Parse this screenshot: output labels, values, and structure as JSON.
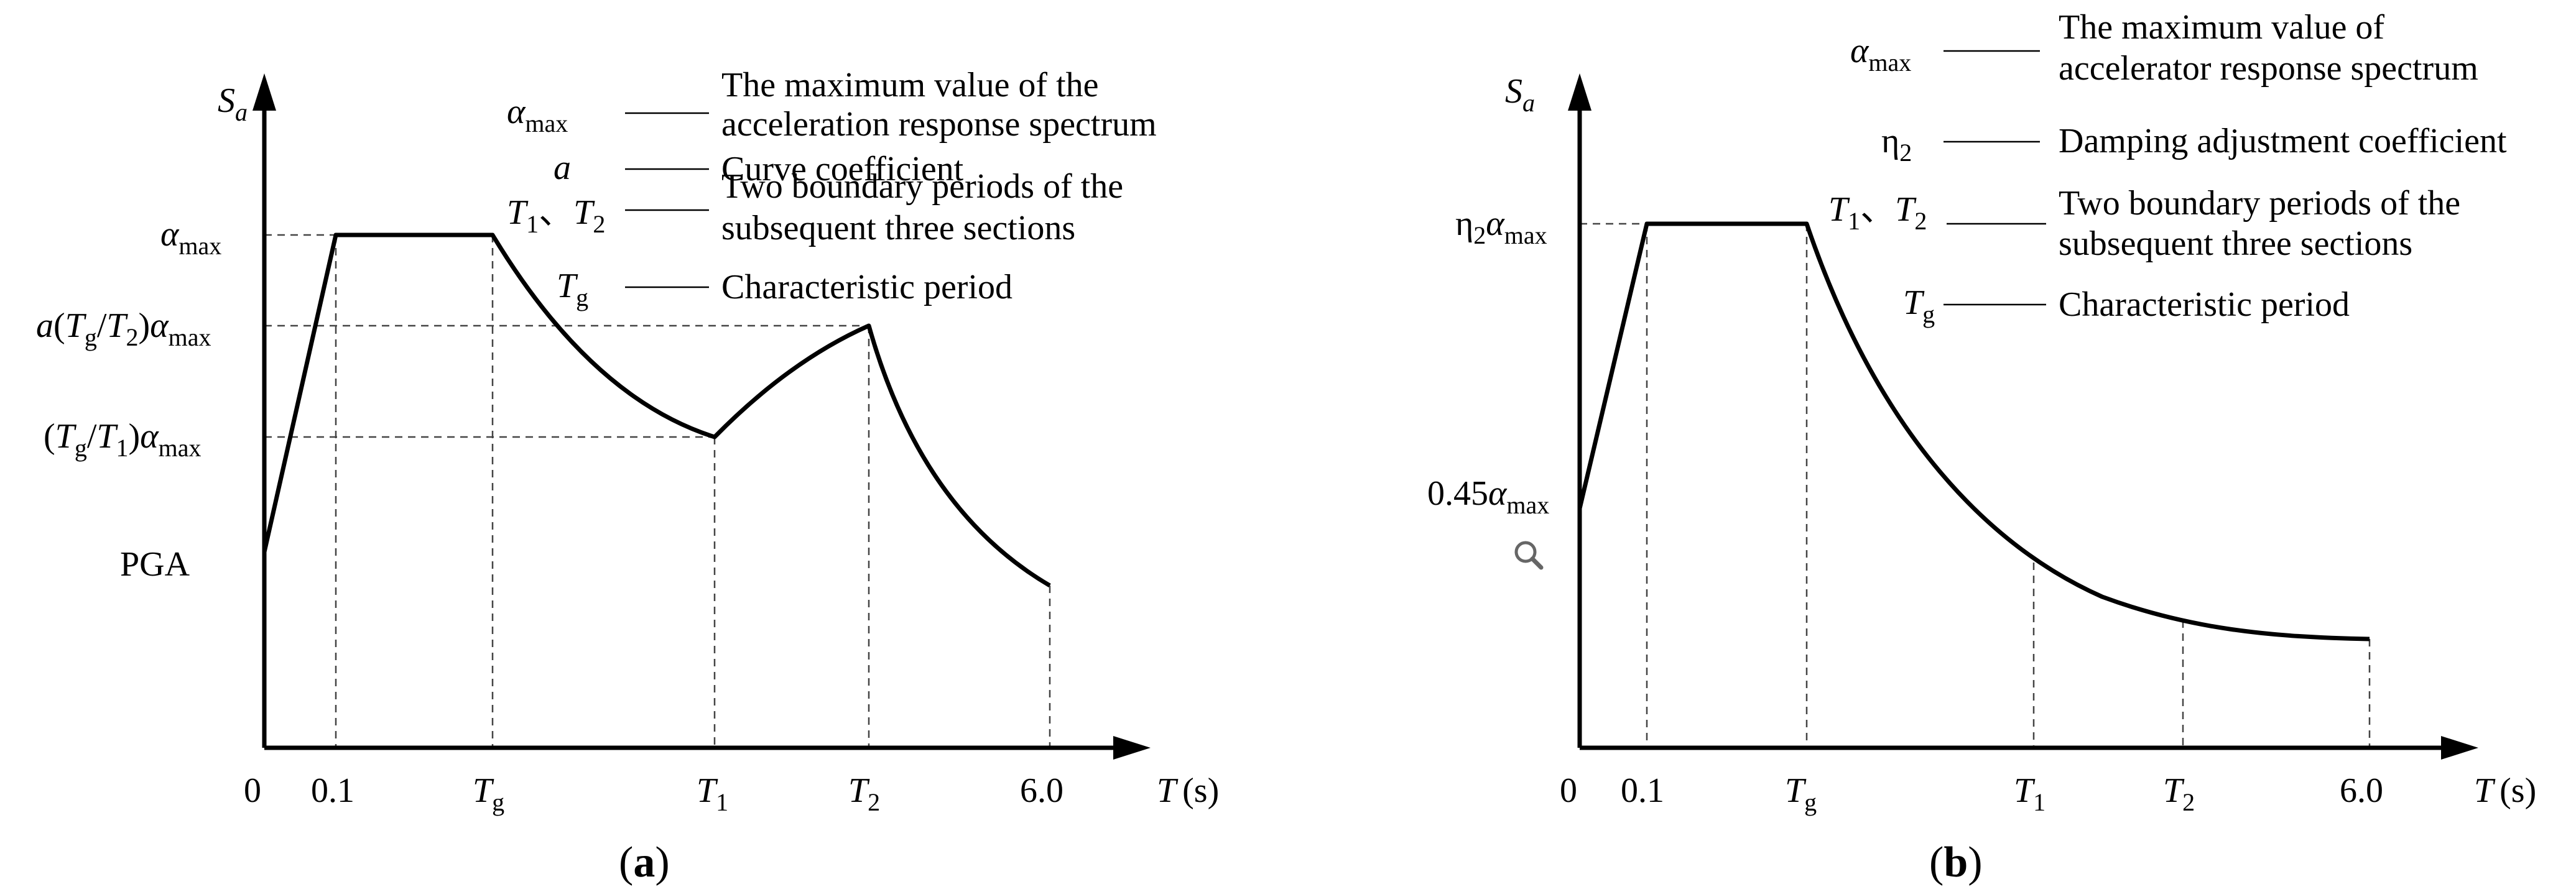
{
  "chart_data": [
    {
      "panel": "a",
      "type": "line",
      "caption": {
        "open": "(",
        "letter": "a",
        "close": ")"
      },
      "xlabel": {
        "var": "T",
        "unit": "(s)"
      },
      "ylabel": {
        "var": "S",
        "subscript": "a"
      },
      "x_ticks": {
        "zero": "0",
        "p01": "0.1",
        "tg": {
          "var": "T",
          "sub": "g"
        },
        "t1": {
          "var": "T",
          "sub": "1"
        },
        "t2": {
          "var": "T",
          "sub": "2"
        },
        "end": "6.0"
      },
      "y_ticks": {
        "pga": "PGA",
        "amax": {
          "sym": "α",
          "sub": "max"
        },
        "tg_t1": {
          "open": "(",
          "tv": "T",
          "ts": "g",
          "slash": "/",
          "tv2": "T",
          "ts2": "1",
          "close": ")",
          "sym": "α",
          "sub": "max"
        },
        "a_tg_t2": {
          "coef": "a",
          "open": "(",
          "tv": "T",
          "ts": "g",
          "slash": "/",
          "tv2": "T",
          "ts2": "2",
          "close": ")",
          "sym": "α",
          "sub": "max"
        }
      },
      "x": [
        0,
        0.1,
        "Tg",
        "T1",
        "T2",
        6.0
      ],
      "y": [
        "PGA",
        "αmax",
        "αmax",
        "(Tg/T1)αmax",
        "a(Tg/T2)αmax",
        "end"
      ],
      "legend": {
        "amax": {
          "sym": "α",
          "sub": "max",
          "desc1": "The maximum value of the",
          "desc2": "acceleration response spectrum"
        },
        "a": {
          "sym": "a",
          "desc": "Curve coefficient"
        },
        "t12": {
          "t1": "T",
          "s1": "1",
          "sep": "、",
          "t2": "T",
          "s2": "2",
          "desc1": "Two boundary periods of the",
          "desc2": "subsequent three sections"
        },
        "tg": {
          "var": "T",
          "sub": "g",
          "desc": "Characteristic period"
        }
      }
    },
    {
      "panel": "b",
      "type": "line",
      "caption": {
        "open": "(",
        "letter": "b",
        "close": ")"
      },
      "xlabel": {
        "var": "T",
        "unit": "(s)"
      },
      "ylabel": {
        "var": "S",
        "subscript": "a"
      },
      "x_ticks": {
        "zero": "0",
        "p01": "0.1",
        "tg": {
          "var": "T",
          "sub": "g"
        },
        "t1": {
          "var": "T",
          "sub": "1"
        },
        "t2": {
          "var": "T",
          "sub": "2"
        },
        "end": "6.0"
      },
      "y_ticks": {
        "eta_amax": {
          "eta": "η",
          "esub": "2",
          "sym": "α",
          "sub": "max"
        },
        "low": {
          "coef": "0.45",
          "sym": "α",
          "sub": "max"
        }
      },
      "x": [
        0,
        0.1,
        "Tg",
        "T1",
        "T2",
        6.0
      ],
      "y": [
        "0.45αmax",
        "η2αmax",
        "η2αmax",
        "decay",
        "decay",
        "decay"
      ],
      "legend": {
        "amax": {
          "sym": "α",
          "sub": "max",
          "desc1": "The maximum value of",
          "desc2": "accelerator response spectrum"
        },
        "eta": {
          "sym": "η",
          "sub": "2",
          "desc": "Damping adjustment coefficient"
        },
        "t12": {
          "t1": "T",
          "s1": "1",
          "sep": "、",
          "t2": "T",
          "s2": "2",
          "desc1": "Two boundary periods of the",
          "desc2": "subsequent three sections"
        },
        "tg": {
          "var": "T",
          "sub": "g",
          "desc": "Characteristic period"
        }
      }
    }
  ],
  "icons": {
    "zoom": "magnifier-icon"
  },
  "colors": {
    "ink": "#000000",
    "dash": "#444444"
  }
}
